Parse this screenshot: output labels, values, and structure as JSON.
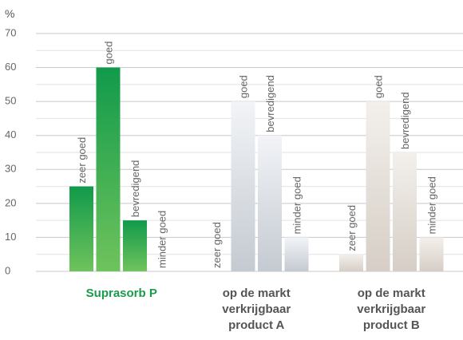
{
  "chart_data": {
    "type": "bar",
    "y_unit": "%",
    "categories": [
      "Suprasorb P",
      "op de markt verkrijgbaar product A",
      "op de markt verkrijgbaar product B"
    ],
    "category_colors": [
      [
        "#119a4b",
        "#6fc35c"
      ],
      [
        "#f2f4f7",
        "#c4cad1"
      ],
      [
        "#f3f0ec",
        "#d6cec6"
      ]
    ],
    "category_label_colors": [
      "#1a9b4a",
      "#555555",
      "#555555"
    ],
    "series": [
      {
        "name": "zeer goed",
        "values": [
          25,
          0,
          5
        ]
      },
      {
        "name": "goed",
        "values": [
          60,
          50,
          50
        ]
      },
      {
        "name": "bevredigend",
        "values": [
          15,
          40,
          35
        ]
      },
      {
        "name": "minder goed",
        "values": [
          0,
          10,
          10
        ]
      }
    ],
    "ylim": [
      0,
      70
    ],
    "yticks": [
      0,
      10,
      20,
      30,
      40,
      50,
      60,
      70
    ],
    "minor_yticks": [
      5,
      15,
      25,
      35,
      45,
      55,
      65
    ],
    "grid": true
  }
}
